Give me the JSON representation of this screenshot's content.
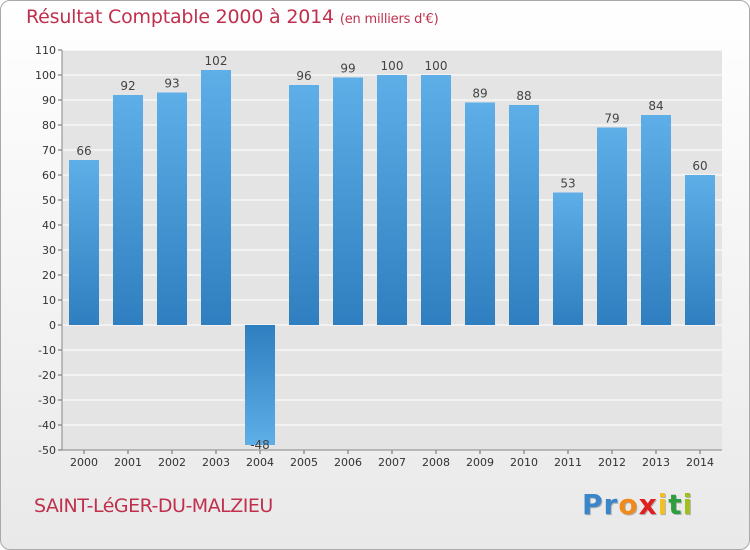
{
  "title": "Résultat Comptable 2000 à 2014",
  "subtitle": "(en milliers d'€)",
  "commune": "SAINT-LéGER-DU-MALZIEU",
  "logo": {
    "text": "Proxiti",
    "letter_colors": [
      "#3b86c8",
      "#3b86c8",
      "#f08a1c",
      "#e02020",
      "#f2c020",
      "#2e9e3e",
      "#a0c020"
    ]
  },
  "colors": {
    "title": "#c0304d",
    "bar_light": "#5eaee8",
    "bar_dark": "#2f7fc0",
    "grid": "#ffffff",
    "axis_text": "#333333"
  },
  "chart_data": {
    "type": "bar",
    "categories": [
      "2000",
      "2001",
      "2002",
      "2003",
      "2004",
      "2005",
      "2006",
      "2007",
      "2008",
      "2009",
      "2010",
      "2011",
      "2012",
      "2013",
      "2014"
    ],
    "values": [
      66,
      92,
      93,
      102,
      -48,
      96,
      99,
      100,
      100,
      89,
      88,
      53,
      79,
      84,
      60
    ],
    "data_labels": [
      "66",
      "92",
      "93",
      "102",
      "-48",
      "96",
      "99",
      "100",
      "100",
      "89",
      "88",
      "53",
      "79",
      "84",
      "60"
    ],
    "title": "Résultat Comptable 2000 à 2014",
    "xlabel": "",
    "ylabel": "",
    "ylim": [
      -50,
      110
    ],
    "yticks": [
      110,
      100,
      90,
      80,
      70,
      60,
      50,
      40,
      30,
      20,
      10,
      0,
      -10,
      -20,
      -30,
      -40,
      -50
    ],
    "grid": true,
    "legend": "none"
  }
}
